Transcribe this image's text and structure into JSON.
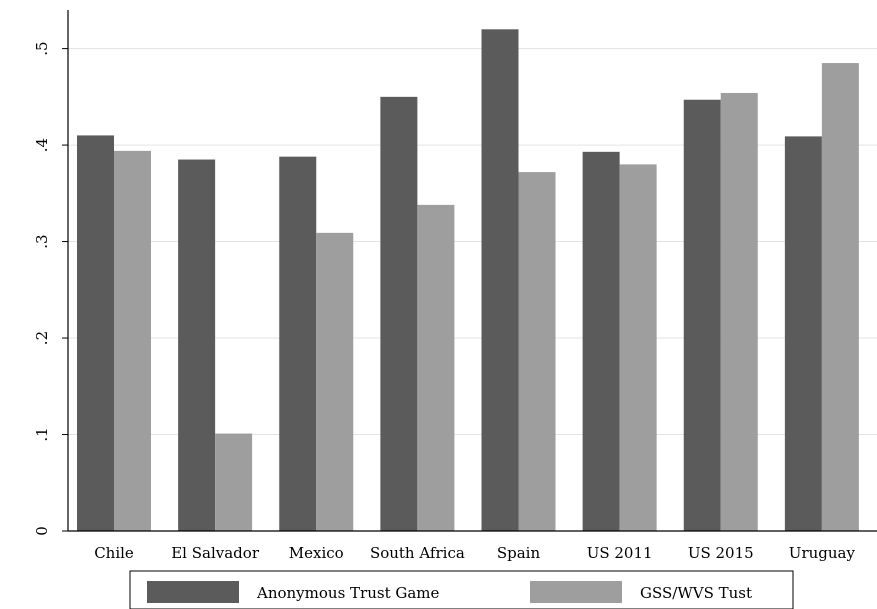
{
  "chart_data": {
    "type": "bar",
    "categories": [
      "Chile",
      "El Salvador",
      "Mexico",
      "South Africa",
      "Spain",
      "US 2011",
      "US 2015",
      "Uruguay"
    ],
    "series": [
      {
        "name": "Anonymous Trust Game",
        "color": "#5b5b5b",
        "values": [
          0.41,
          0.385,
          0.388,
          0.45,
          0.52,
          0.393,
          0.447,
          0.409
        ]
      },
      {
        "name": "GSS/WVS Tust",
        "color": "#9e9e9e",
        "values": [
          0.394,
          0.101,
          0.309,
          0.338,
          0.372,
          0.38,
          0.454,
          0.485
        ]
      }
    ],
    "yticks": [
      0,
      0.1,
      0.2,
      0.3,
      0.4,
      0.5
    ],
    "ytick_labels": [
      "0",
      ".1",
      ".2",
      ".3",
      ".4",
      ".5"
    ],
    "ylim": [
      0,
      0.54
    ],
    "title": "",
    "xlabel": "",
    "ylabel": "",
    "grid": true,
    "legend_position": "bottom"
  }
}
